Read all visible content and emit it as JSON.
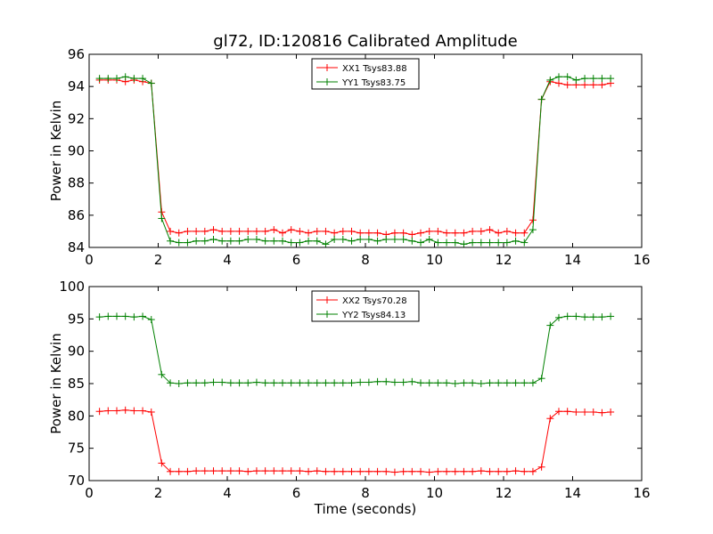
{
  "figure": {
    "title": "gl72, ID:120816 Calibrated Amplitude"
  },
  "chart_data": [
    {
      "type": "line",
      "title": "gl72, ID:120816 Calibrated Amplitude",
      "xlabel": "",
      "ylabel": "Power in Kelvin",
      "xlim": [
        0,
        16
      ],
      "ylim": [
        84,
        96
      ],
      "xticks": [
        0,
        2,
        4,
        6,
        8,
        10,
        12,
        14,
        16
      ],
      "yticks": [
        84,
        86,
        88,
        90,
        92,
        94,
        96
      ],
      "grid": false,
      "legend_position": "top-center",
      "x": [
        0.3,
        0.55,
        0.8,
        1.05,
        1.3,
        1.55,
        1.8,
        2.1,
        2.35,
        2.6,
        2.85,
        3.1,
        3.35,
        3.6,
        3.85,
        4.1,
        4.35,
        4.6,
        4.85,
        5.1,
        5.35,
        5.6,
        5.85,
        6.1,
        6.35,
        6.6,
        6.85,
        7.1,
        7.35,
        7.6,
        7.85,
        8.1,
        8.35,
        8.6,
        8.85,
        9.1,
        9.35,
        9.6,
        9.85,
        10.1,
        10.35,
        10.6,
        10.85,
        11.1,
        11.35,
        11.6,
        11.85,
        12.1,
        12.35,
        12.6,
        12.85,
        13.1,
        13.35,
        13.6,
        13.85,
        14.1,
        14.35,
        14.6,
        14.85,
        15.1
      ],
      "series": [
        {
          "name": "XX1 Tsys83.88",
          "color": "#ff0000",
          "values": [
            94.4,
            94.4,
            94.4,
            94.3,
            94.4,
            94.3,
            94.2,
            86.2,
            85.0,
            84.9,
            85.0,
            85.0,
            85.0,
            85.1,
            85.0,
            85.0,
            85.0,
            85.0,
            85.0,
            85.0,
            85.1,
            84.9,
            85.1,
            85.0,
            84.9,
            85.0,
            85.0,
            84.9,
            85.0,
            85.0,
            84.9,
            84.9,
            84.9,
            84.8,
            84.9,
            84.9,
            84.8,
            84.9,
            85.0,
            85.0,
            84.9,
            84.9,
            84.9,
            85.0,
            85.0,
            85.1,
            84.9,
            85.0,
            84.9,
            84.9,
            85.7,
            93.2,
            94.3,
            94.2,
            94.1,
            94.1,
            94.1,
            94.1,
            94.1,
            94.2
          ]
        },
        {
          "name": "YY1 Tsys83.75",
          "color": "#008000",
          "values": [
            94.5,
            94.5,
            94.5,
            94.6,
            94.5,
            94.5,
            94.2,
            85.8,
            84.4,
            84.3,
            84.3,
            84.4,
            84.4,
            84.5,
            84.4,
            84.4,
            84.4,
            84.5,
            84.5,
            84.4,
            84.4,
            84.4,
            84.3,
            84.3,
            84.4,
            84.4,
            84.2,
            84.5,
            84.5,
            84.4,
            84.5,
            84.5,
            84.4,
            84.5,
            84.5,
            84.5,
            84.4,
            84.3,
            84.5,
            84.3,
            84.3,
            84.3,
            84.2,
            84.3,
            84.3,
            84.3,
            84.3,
            84.3,
            84.4,
            84.3,
            85.1,
            93.2,
            94.4,
            94.6,
            94.6,
            94.4,
            94.5,
            94.5,
            94.5,
            94.5
          ]
        }
      ]
    },
    {
      "type": "line",
      "title": "",
      "xlabel": "Time (seconds)",
      "ylabel": "Power in Kelvin",
      "xlim": [
        0,
        16
      ],
      "ylim": [
        70,
        100
      ],
      "xticks": [
        0,
        2,
        4,
        6,
        8,
        10,
        12,
        14,
        16
      ],
      "yticks": [
        70,
        75,
        80,
        85,
        90,
        95,
        100
      ],
      "grid": false,
      "legend_position": "top-center",
      "x": [
        0.3,
        0.55,
        0.8,
        1.05,
        1.3,
        1.55,
        1.8,
        2.1,
        2.35,
        2.6,
        2.85,
        3.1,
        3.35,
        3.6,
        3.85,
        4.1,
        4.35,
        4.6,
        4.85,
        5.1,
        5.35,
        5.6,
        5.85,
        6.1,
        6.35,
        6.6,
        6.85,
        7.1,
        7.35,
        7.6,
        7.85,
        8.1,
        8.35,
        8.6,
        8.85,
        9.1,
        9.35,
        9.6,
        9.85,
        10.1,
        10.35,
        10.6,
        10.85,
        11.1,
        11.35,
        11.6,
        11.85,
        12.1,
        12.35,
        12.6,
        12.85,
        13.1,
        13.35,
        13.6,
        13.85,
        14.1,
        14.35,
        14.6,
        14.85,
        15.1
      ],
      "series": [
        {
          "name": "XX2 Tsys70.28",
          "color": "#ff0000",
          "values": [
            80.7,
            80.8,
            80.8,
            80.9,
            80.8,
            80.8,
            80.6,
            72.7,
            71.4,
            71.4,
            71.4,
            71.5,
            71.5,
            71.5,
            71.5,
            71.5,
            71.5,
            71.4,
            71.5,
            71.5,
            71.5,
            71.5,
            71.5,
            71.5,
            71.4,
            71.5,
            71.4,
            71.4,
            71.4,
            71.4,
            71.4,
            71.4,
            71.4,
            71.4,
            71.3,
            71.4,
            71.4,
            71.4,
            71.3,
            71.4,
            71.4,
            71.4,
            71.4,
            71.4,
            71.5,
            71.4,
            71.4,
            71.4,
            71.5,
            71.4,
            71.4,
            72.1,
            79.6,
            80.7,
            80.7,
            80.6,
            80.6,
            80.6,
            80.5,
            80.6
          ]
        },
        {
          "name": "YY2 Tsys84.13",
          "color": "#008000",
          "values": [
            95.3,
            95.4,
            95.4,
            95.4,
            95.3,
            95.4,
            94.9,
            86.4,
            85.1,
            85.0,
            85.1,
            85.1,
            85.1,
            85.2,
            85.2,
            85.1,
            85.1,
            85.1,
            85.2,
            85.1,
            85.1,
            85.1,
            85.1,
            85.1,
            85.1,
            85.1,
            85.1,
            85.1,
            85.1,
            85.1,
            85.2,
            85.2,
            85.3,
            85.3,
            85.2,
            85.2,
            85.3,
            85.1,
            85.1,
            85.1,
            85.1,
            85.0,
            85.1,
            85.1,
            85.0,
            85.1,
            85.1,
            85.1,
            85.1,
            85.1,
            85.1,
            85.8,
            94.0,
            95.2,
            95.4,
            95.4,
            95.3,
            95.3,
            95.3,
            95.4
          ]
        }
      ]
    }
  ]
}
